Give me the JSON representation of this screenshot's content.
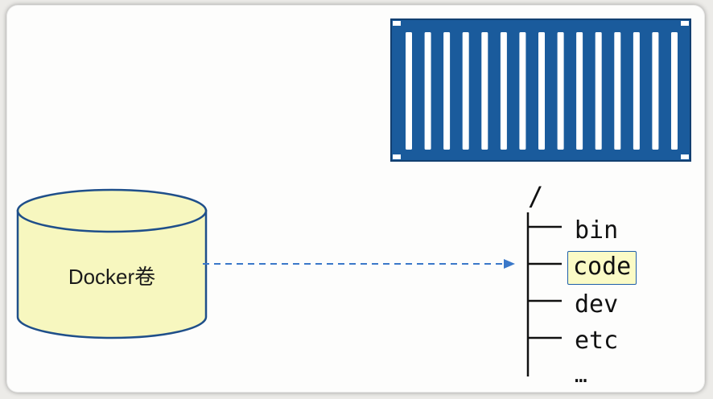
{
  "volume": {
    "label": "Docker卷"
  },
  "filesystem": {
    "root": "/",
    "entries": [
      {
        "name": "bin",
        "highlighted": false
      },
      {
        "name": "code",
        "highlighted": true
      },
      {
        "name": "dev",
        "highlighted": false
      },
      {
        "name": "etc",
        "highlighted": false
      },
      {
        "name": "…",
        "highlighted": false
      }
    ]
  },
  "icons": {
    "container": "shipping-container-icon",
    "volume": "cylinder-icon"
  },
  "colors": {
    "container_blue": "#1a5b9c",
    "volume_fill": "#f7f7bf",
    "volume_stroke": "#1f4f8a",
    "arrow": "#3a78c9",
    "highlight_fill": "#fbfbc6",
    "highlight_border": "#1f5fa8"
  }
}
